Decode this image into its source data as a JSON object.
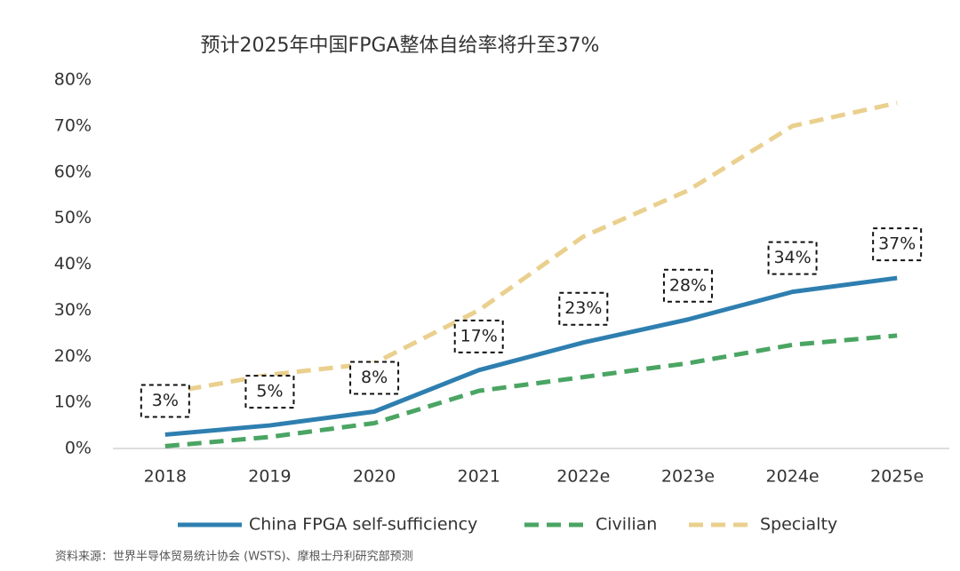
{
  "chart_data": {
    "type": "line",
    "title": "预计2025年中国FPGA整体自给率将升至37%",
    "categories": [
      "2018",
      "2019",
      "2020",
      "2021",
      "2022e",
      "2023e",
      "2024e",
      "2025e"
    ],
    "series": [
      {
        "name": "China FPGA self-sufficiency",
        "color": "#2e7fb0",
        "dash": "solid",
        "values": [
          3,
          5,
          8,
          17,
          23,
          28,
          34,
          37
        ],
        "value_labels": [
          "3%",
          "5%",
          "8%",
          "17%",
          "23%",
          "28%",
          "34%",
          "37%"
        ]
      },
      {
        "name": "Civilian",
        "color": "#4aa563",
        "dash": "dashed",
        "values": [
          0.5,
          2.5,
          5.5,
          12.5,
          15.5,
          18.5,
          22.5,
          24.5
        ]
      },
      {
        "name": "Specialty",
        "color": "#ead08e",
        "dash": "dashed",
        "values": [
          12,
          16,
          18.5,
          30,
          46,
          56,
          70,
          75
        ]
      }
    ],
    "ylim": [
      0,
      80
    ],
    "yticks": [
      {
        "value": 0,
        "label": "0%"
      },
      {
        "value": 10,
        "label": "10%"
      },
      {
        "value": 20,
        "label": "20%"
      },
      {
        "value": 30,
        "label": "30%"
      },
      {
        "value": 40,
        "label": "40%"
      },
      {
        "value": 50,
        "label": "50%"
      },
      {
        "value": 60,
        "label": "60%"
      },
      {
        "value": 70,
        "label": "70%"
      },
      {
        "value": 80,
        "label": "80%"
      }
    ],
    "grid": false,
    "legend": "bottom",
    "note": "资料来源：世界半导体贸易统计协会 (WSTS)、摩根士丹利研究部预测"
  }
}
